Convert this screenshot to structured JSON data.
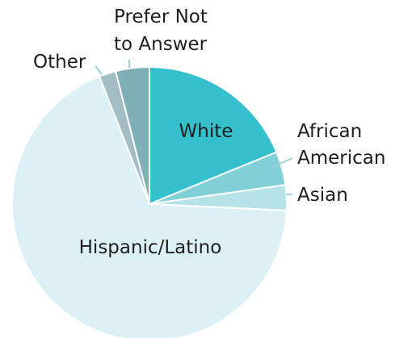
{
  "chart_data": {
    "type": "pie",
    "categories": [
      "White",
      "African American",
      "Asian",
      "Hispanic/Latino",
      "Other",
      "Prefer Not to Answer"
    ],
    "values": [
      19,
      4,
      3,
      69,
      2,
      4
    ],
    "labels": {
      "white": "White",
      "african_american": [
        "African",
        "American"
      ],
      "asian": "Asian",
      "hispanic_latino": "Hispanic/Latino",
      "other": "Other",
      "prefer_not": [
        "Prefer Not",
        "to Answer"
      ]
    },
    "colors": [
      "#34c0cc",
      "#7fd0d7",
      "#b4e2e7",
      "#dcf1f5",
      "#a4bdc4",
      "#7eb0b8"
    ],
    "start_angle_deg": 0,
    "direction": "clockwise",
    "legend": "none"
  }
}
